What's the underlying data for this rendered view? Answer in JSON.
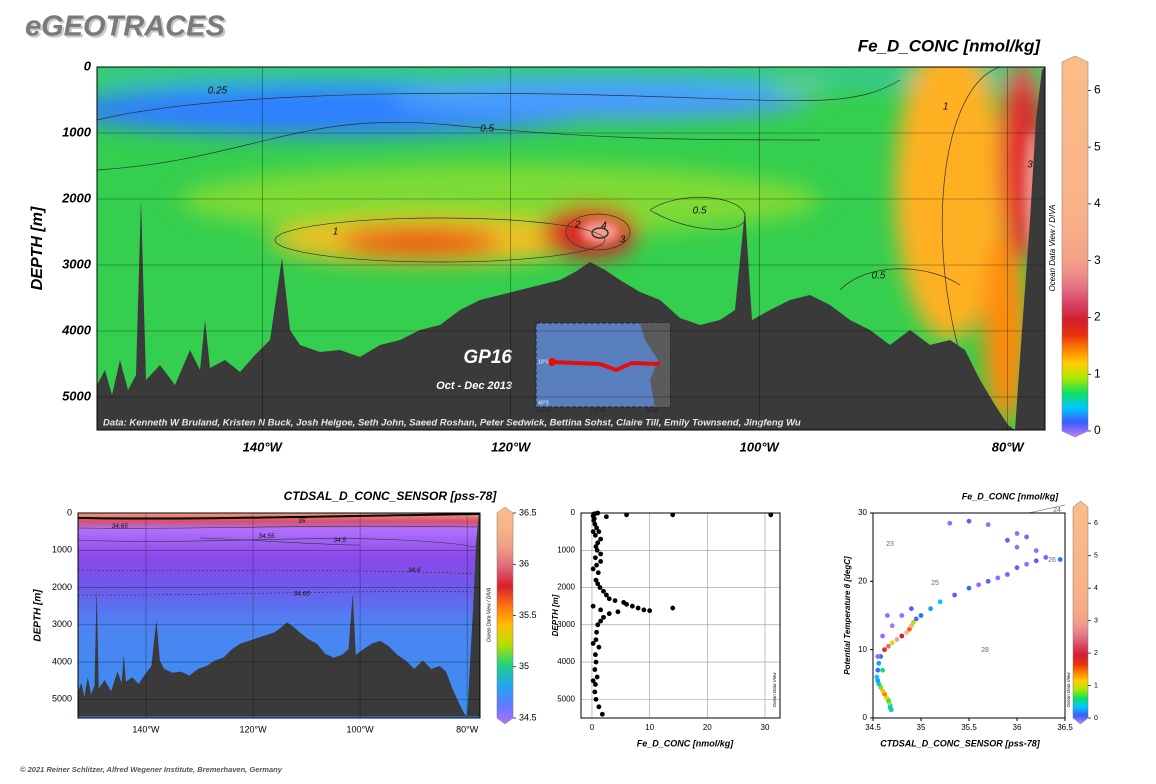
{
  "header": {
    "title": "eGEOTRACES"
  },
  "footer": {
    "text": "© 2021 Reiner Schlitzer, Alfred Wegener Institute, Bremerhaven, Germany"
  },
  "chart_data": [
    {
      "type": "section",
      "title": "Fe_D_CONC [nmol/kg]",
      "ylabel": "DEPTH [m]",
      "xlim": [
        -153.3,
        -77
      ],
      "xticks": [
        {
          "value": -140,
          "label": "140°W"
        },
        {
          "value": -120,
          "label": "120°W"
        },
        {
          "value": -100,
          "label": "100°W"
        },
        {
          "value": -80,
          "label": "80°W"
        }
      ],
      "ylim": [
        0,
        5500
      ],
      "y_inverted": true,
      "yticks": [
        0,
        1000,
        2000,
        3000,
        4000,
        5000
      ],
      "grid": true,
      "colorbar": {
        "lim": [
          0,
          6.5
        ],
        "ticks": [
          0,
          1,
          2,
          3,
          4,
          5,
          6
        ],
        "colors": [
          "#c77dff",
          "#3a5cff",
          "#00c8ff",
          "#10e060",
          "#a8e800",
          "#ffd000",
          "#ff8000",
          "#e83010",
          "#d0202e",
          "#d84060",
          "#e06a80",
          "#ec8a8a",
          "#f4a08a",
          "#f6a888",
          "#f7ad88",
          "#f8b088",
          "#f8b288",
          "#f9b488",
          "#f9b588",
          "#f9b688",
          "#fab788",
          "#fab888",
          "#fab988",
          "#fbba88",
          "#fbbb88",
          "#fbbc88",
          "#fbbd88"
        ]
      },
      "contour_labels": [
        {
          "value": 0.25,
          "x": -143.6,
          "depth": 364
        },
        {
          "value": 0.5,
          "x": -121.9,
          "depth": 939
        },
        {
          "value": 1,
          "x": -134.1,
          "depth": 2500
        },
        {
          "value": 2,
          "x": -114.6,
          "depth": 2394
        },
        {
          "value": 4,
          "x": -112.5,
          "depth": 2409
        },
        {
          "value": 3,
          "x": -111.0,
          "depth": 2621
        },
        {
          "value": 0.5,
          "x": -104.8,
          "depth": 2182
        },
        {
          "value": 0.5,
          "x": -90.4,
          "depth": 3167
        },
        {
          "value": 1,
          "x": -85.0,
          "depth": 606
        },
        {
          "value": 3,
          "x": -78.2,
          "depth": 1485
        }
      ],
      "side_label": "Ocean Data View / DIVA",
      "credit": "Data: Kenneth W Bruland, Kristen N Buck, Josh Helgoe, Seth John, Saeed Roshan, Peter Sedwick, Bettina Sohst, Claire Till, Emily Townsend, Jingfeng Wu",
      "inset": {
        "title": "GP16",
        "subtitle": "Oct - Dec 2013",
        "lat_labels": [
          "10°S",
          "40°S"
        ],
        "lon_labels": [
          "160°W",
          "120°W",
          "80°W"
        ]
      }
    },
    {
      "type": "section",
      "title": "CTDSAL_D_CONC_SENSOR [pss-78]",
      "ylabel": "DEPTH [m]",
      "xlim": [
        -152.7,
        -77.6
      ],
      "xticks": [
        {
          "value": -140,
          "label": "140°W"
        },
        {
          "value": -120,
          "label": "120°W"
        },
        {
          "value": -100,
          "label": "100°W"
        },
        {
          "value": -80,
          "label": "80°W"
        }
      ],
      "ylim": [
        0,
        5500
      ],
      "y_inverted": true,
      "yticks": [
        0,
        1000,
        2000,
        3000,
        4000,
        5000
      ],
      "grid": true,
      "colorbar": {
        "lim": [
          34.5,
          36.5
        ],
        "ticks": [
          34.5,
          35,
          35.5,
          36,
          36.5
        ],
        "colors": [
          "#b070ff",
          "#5a7cff",
          "#20a8f0",
          "#20d080",
          "#b0e000",
          "#ffc000",
          "#ff7010",
          "#d82030",
          "#e06a7a",
          "#f0a088",
          "#f8b488",
          "#fbbd88"
        ]
      },
      "contour_labels": [
        {
          "value": 34.65,
          "x": -144.9,
          "depth": 351
        },
        {
          "value": 35,
          "x": -110.9,
          "depth": 216
        },
        {
          "value": 34.55,
          "x": -117.5,
          "depth": 622
        },
        {
          "value": 34.5,
          "x": -103.8,
          "depth": 730
        },
        {
          "value": 34.6,
          "x": -89.9,
          "depth": 1541
        },
        {
          "value": 34.65,
          "x": -110.9,
          "depth": 2162
        }
      ],
      "side_label": "Ocean Data View / DIVA"
    },
    {
      "type": "scatter",
      "xlabel": "Fe_D_CONC [nmol/kg]",
      "ylabel": "DEPTH [m]",
      "color": "#000000",
      "xlim": [
        -1.9,
        32.6
      ],
      "xticks": [
        0,
        10,
        20,
        30
      ],
      "ylim": [
        0,
        5500
      ],
      "y_inverted": true,
      "yticks": [
        0,
        1000,
        2000,
        3000,
        4000,
        5000
      ],
      "grid": true,
      "x": [
        31,
        14,
        6,
        2.5,
        1,
        0.5,
        0.3,
        0.2,
        0.4,
        0.3,
        0.5,
        0.8,
        1.2,
        0.6,
        1,
        0.7,
        0.9,
        1.5,
        0.6,
        0.8,
        1.1,
        0.7,
        1.0,
        1.4,
        2,
        2.5,
        3,
        4,
        5.5,
        6,
        7,
        8,
        9,
        10,
        14,
        4.5,
        3,
        2,
        1.5,
        1,
        0.8,
        0.7,
        1.2,
        0.6,
        0.7,
        0.5,
        0.9,
        0.6,
        0.5,
        0.7,
        1.2,
        1.8,
        0.2,
        0.2,
        0.2,
        0.2,
        0.2,
        1.5,
        1.5,
        1.5
      ],
      "y": [
        50,
        50,
        50,
        100,
        0,
        20,
        30,
        80,
        150,
        200,
        300,
        400,
        500,
        600,
        800,
        900,
        1000,
        1100,
        1200,
        1400,
        1600,
        1800,
        1900,
        2000,
        2100,
        2200,
        2300,
        2350,
        2400,
        2450,
        2500,
        2550,
        2600,
        2620,
        2550,
        2650,
        2700,
        2800,
        2900,
        3000,
        3200,
        3400,
        3600,
        3800,
        4000,
        4200,
        4400,
        4600,
        4800,
        5000,
        5200,
        5400,
        500,
        1500,
        2500,
        3500,
        4500,
        700,
        1300,
        2600
      ],
      "side_label": "Ocean Data View"
    },
    {
      "type": "scatter",
      "title": "Fe_D_CONC [nmol/kg]",
      "xlabel": "CTDSAL_D_CONC_SENSOR [pss-78]",
      "ylabel": "Potential Temperature θ [degC]",
      "xlim": [
        34.5,
        36.5
      ],
      "xticks": [
        34.5,
        35,
        35.5,
        36,
        36.5
      ],
      "ylim": [
        0,
        30
      ],
      "yticks": [
        0,
        10,
        20,
        30
      ],
      "grid": false,
      "x": [
        34.69,
        34.68,
        34.68,
        34.67,
        34.66,
        34.64,
        34.62,
        34.6,
        34.58,
        34.56,
        34.55,
        34.54,
        34.55,
        34.56,
        34.58,
        34.62,
        34.66,
        34.7,
        34.75,
        34.8,
        34.85,
        34.88,
        34.9,
        34.92,
        34.95,
        35.0,
        35.1,
        35.2,
        35.35,
        35.5,
        35.6,
        35.7,
        35.8,
        35.9,
        36.0,
        36.1,
        36.2,
        36.3,
        36.45,
        36.2,
        36.0,
        35.9,
        36.0,
        36.1,
        35.3,
        35.5,
        35.7,
        34.6,
        34.55,
        34.6,
        34.7,
        34.8,
        34.65,
        34.9
      ],
      "y": [
        1.2,
        1.5,
        1.8,
        2.2,
        2.6,
        3.0,
        3.5,
        4.0,
        4.5,
        5.0,
        5.5,
        6.0,
        7.0,
        8.0,
        9.0,
        10.0,
        10.5,
        11.0,
        11.5,
        12.0,
        12.5,
        13.0,
        13.5,
        14.0,
        14.5,
        15.0,
        16.0,
        17.0,
        18.0,
        19.0,
        19.5,
        20.0,
        20.5,
        21.0,
        22.0,
        22.5,
        23.0,
        23.5,
        23.2,
        24.5,
        25.0,
        26.0,
        27.0,
        26.5,
        28.5,
        28.8,
        28.3,
        12.0,
        9.0,
        7.0,
        13.5,
        15,
        15,
        16
      ],
      "values": [
        0.6,
        0.7,
        0.5,
        1.0,
        0.8,
        1.2,
        1.5,
        1.3,
        0.9,
        0.6,
        0.4,
        0.5,
        0.3,
        0.4,
        0.3,
        1.8,
        2.5,
        1.2,
        3.0,
        2.0,
        4.5,
        1.6,
        3.5,
        1.0,
        0.2,
        0.3,
        0.4,
        0.5,
        0.2,
        0.3,
        0.1,
        0.2,
        0.1,
        0.15,
        0.2,
        0.1,
        0.2,
        0.15,
        0.3,
        0.1,
        0.1,
        0.2,
        0.1,
        0.15,
        0.1,
        0.2,
        0.1,
        0.1,
        0.1,
        0.7,
        0.05,
        0.1,
        0.1,
        0.2
      ],
      "colorbar": {
        "lim": [
          0,
          6.5
        ],
        "ticks": [
          0,
          1,
          2,
          3,
          4,
          5,
          6
        ],
        "colors": [
          "#c77dff",
          "#3a5cff",
          "#00c8ff",
          "#10e060",
          "#a8e800",
          "#ffd000",
          "#ff8000",
          "#e83010",
          "#d0202e",
          "#d84060",
          "#e06a80",
          "#ec8a8a",
          "#f4a08a",
          "#f6a888",
          "#f7ad88",
          "#f8b088",
          "#f8b288",
          "#f9b488",
          "#f9b588",
          "#f9b688",
          "#fab788",
          "#fab888",
          "#fab988",
          "#fbba88",
          "#fbbb88",
          "#fbbc88",
          "#fbbd88"
        ]
      },
      "isopycnal_symbol": "σ0",
      "isopycnal_labels": [
        23,
        24,
        25,
        26,
        28
      ],
      "side_label": "Ocean Data View"
    }
  ]
}
